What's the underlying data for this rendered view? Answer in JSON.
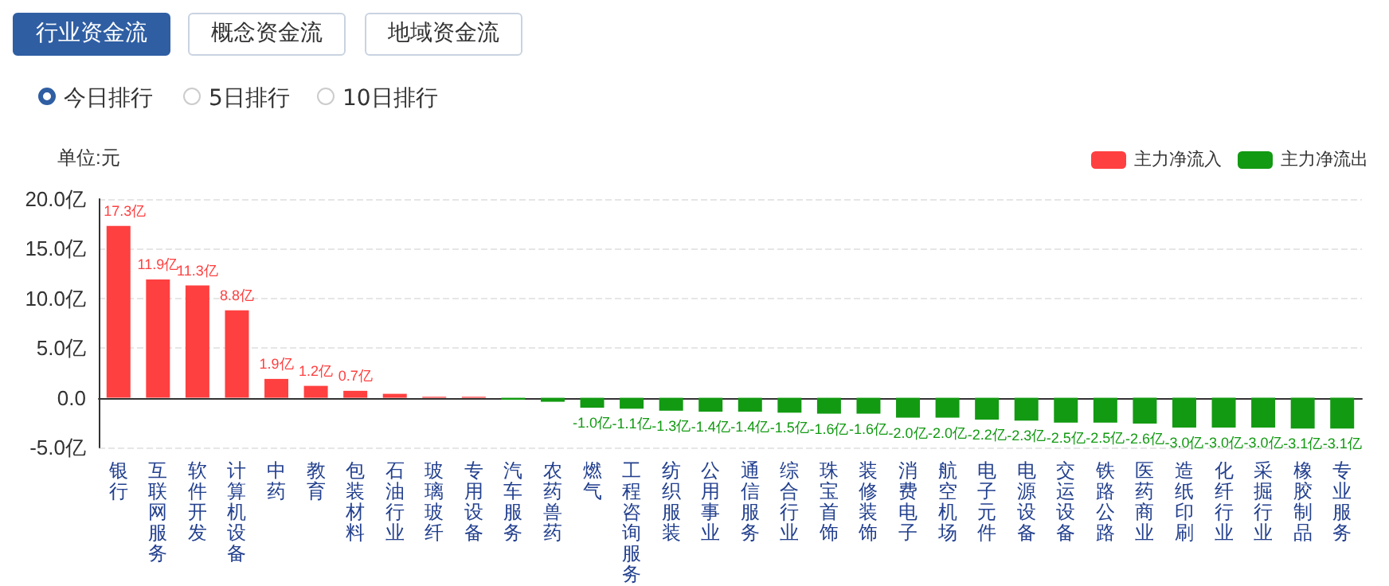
{
  "chart_data": {
    "type": "bar",
    "ylabel": "单位:元",
    "annotations": [
      "行业资金流",
      "概念资金流",
      "地域资金流",
      "今日排行",
      "5日排行",
      "10日排行"
    ],
    "categories": [
      "银行",
      "互联网服务",
      "软件开发",
      "计算机设备",
      "中药",
      "教育",
      "包装材料",
      "石油行业",
      "玻璃玻纤",
      "专用设备",
      "汽车服务",
      "农药兽药",
      "燃气",
      "工程咨询服务",
      "纺织服装",
      "公用事业",
      "通信服务",
      "综合行业",
      "珠宝首饰",
      "装修装饰",
      "消费电子",
      "航空机场",
      "电子元件",
      "电源设备",
      "交运设备",
      "铁路公路",
      "医药商业",
      "造纸印刷",
      "化纤行业",
      "采掘行业",
      "橡胶制品",
      "专业服务"
    ],
    "series": [
      {
        "name": "主力净流入",
        "color": "#ff4040",
        "values": [
          17.3,
          11.9,
          11.3,
          8.8,
          1.9,
          1.2,
          0.7,
          0.4,
          0.1,
          0.1,
          null,
          null,
          null,
          null,
          null,
          null,
          null,
          null,
          null,
          null,
          null,
          null,
          null,
          null,
          null,
          null,
          null,
          null,
          null,
          null,
          null,
          null
        ],
        "value_labels": [
          "17.3亿",
          "11.9亿",
          "11.3亿",
          "8.8亿",
          "1.9亿",
          "1.2亿",
          "0.7亿",
          null,
          null,
          null,
          null,
          null,
          null,
          null,
          null,
          null,
          null,
          null,
          null,
          null,
          null,
          null,
          null,
          null,
          null,
          null,
          null,
          null,
          null,
          null,
          null,
          null
        ]
      },
      {
        "name": "主力净流出",
        "color": "#129a12",
        "values": [
          null,
          null,
          null,
          null,
          null,
          null,
          null,
          null,
          null,
          null,
          -0.2,
          -0.4,
          -1.0,
          -1.1,
          -1.3,
          -1.4,
          -1.4,
          -1.5,
          -1.6,
          -1.6,
          -2.0,
          -2.0,
          -2.2,
          -2.3,
          -2.5,
          -2.5,
          -2.6,
          -3.0,
          -3.0,
          -3.0,
          -3.1,
          -3.1
        ],
        "value_labels": [
          null,
          null,
          null,
          null,
          null,
          null,
          null,
          null,
          null,
          null,
          null,
          null,
          "-1.0亿",
          "-1.1亿",
          "-1.3亿",
          "-1.4亿",
          "-1.4亿",
          "-1.5亿",
          "-1.6亿",
          "-1.6亿",
          "-2.0亿",
          "-2.0亿",
          "-2.2亿",
          "-2.3亿",
          "-2.5亿",
          "-2.5亿",
          "-2.6亿",
          "-3.0亿",
          "-3.0亿",
          "-3.0亿",
          "-3.1亿",
          "-3.1亿"
        ]
      }
    ],
    "ylim": [
      -5,
      20
    ],
    "yticks": [
      {
        "value": -5,
        "label": "-5.0亿"
      },
      {
        "value": 0,
        "label": "0.0"
      },
      {
        "value": 5,
        "label": "5.0亿"
      },
      {
        "value": 10,
        "label": "10.0亿"
      },
      {
        "value": 15,
        "label": "15.0亿"
      },
      {
        "value": 20,
        "label": "20.0亿"
      }
    ],
    "grid": "y",
    "legend": "top right"
  }
}
